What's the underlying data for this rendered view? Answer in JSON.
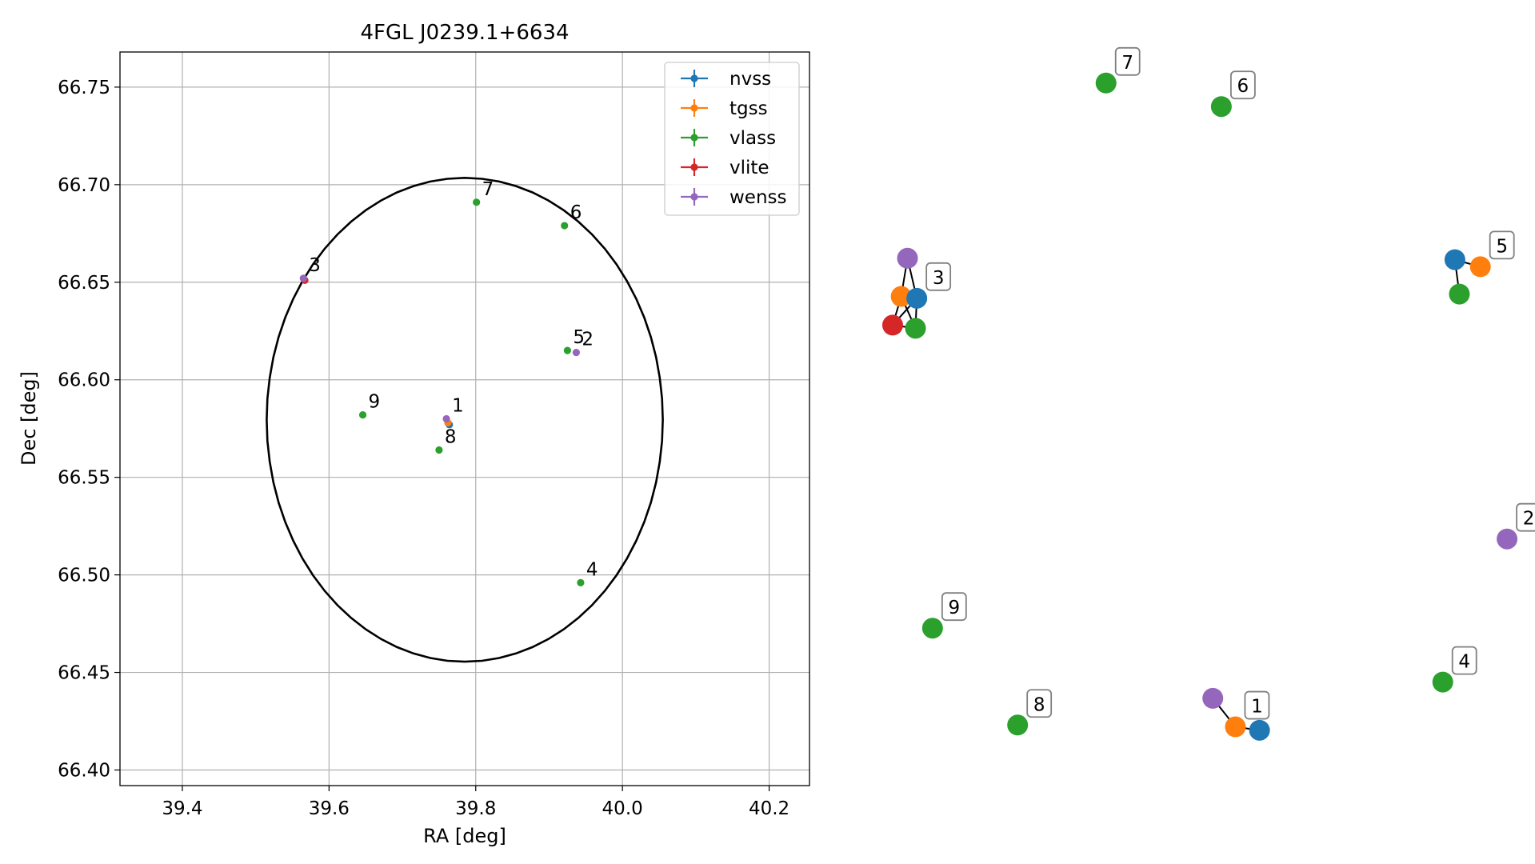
{
  "chart_data": [
    {
      "type": "scatter",
      "title": "4FGL J0239.1+6634",
      "xlabel": "RA [deg]",
      "ylabel": "Dec [deg]",
      "xlim": [
        39.315,
        40.255
      ],
      "ylim": [
        66.392,
        66.768
      ],
      "xticks": [
        39.4,
        39.6,
        39.8,
        40.0,
        40.2
      ],
      "xtick_labels": [
        "39.4",
        "39.6",
        "39.8",
        "40.0",
        "40.2"
      ],
      "yticks": [
        66.4,
        66.45,
        66.5,
        66.55,
        66.6,
        66.65,
        66.7,
        66.75
      ],
      "ytick_labels": [
        "66.40",
        "66.45",
        "66.50",
        "66.55",
        "66.60",
        "66.65",
        "66.70",
        "66.75"
      ],
      "grid": true,
      "legend_position": "top-right",
      "ellipse": {
        "center_ra": 39.785,
        "center_dec": 66.5795,
        "semi_width_ra": 0.27,
        "semi_height_dec": 0.124,
        "color": "#000000"
      },
      "series": [
        {
          "name": "nvss",
          "color": "#1f77b4",
          "points": [
            {
              "ra": 39.764,
              "dec": 66.577
            }
          ]
        },
        {
          "name": "tgss",
          "color": "#ff7f0e",
          "points": [
            {
              "ra": 39.762,
              "dec": 66.578
            }
          ]
        },
        {
          "name": "vlass",
          "color": "#2ca02c",
          "points": [
            {
              "ra": 39.801,
              "dec": 66.691
            },
            {
              "ra": 39.921,
              "dec": 66.679
            },
            {
              "ra": 39.925,
              "dec": 66.615
            },
            {
              "ra": 39.943,
              "dec": 66.496
            },
            {
              "ra": 39.646,
              "dec": 66.582
            },
            {
              "ra": 39.75,
              "dec": 66.564
            }
          ]
        },
        {
          "name": "vlite",
          "color": "#d62728",
          "points": [
            {
              "ra": 39.567,
              "dec": 66.651
            }
          ]
        },
        {
          "name": "wenss",
          "color": "#9467bd",
          "points": [
            {
              "ra": 39.565,
              "dec": 66.652
            },
            {
              "ra": 39.937,
              "dec": 66.614
            },
            {
              "ra": 39.76,
              "dec": 66.58
            }
          ]
        }
      ],
      "labels": [
        {
          "text": "7",
          "ra": 39.801,
          "dec": 66.691
        },
        {
          "text": "6",
          "ra": 39.921,
          "dec": 66.679
        },
        {
          "text": "3",
          "ra": 39.565,
          "dec": 66.652
        },
        {
          "text": "5",
          "ra": 39.925,
          "dec": 66.615
        },
        {
          "text": "2",
          "ra": 39.937,
          "dec": 66.614
        },
        {
          "text": "9",
          "ra": 39.646,
          "dec": 66.582
        },
        {
          "text": "1",
          "ra": 39.76,
          "dec": 66.58
        },
        {
          "text": "8",
          "ra": 39.75,
          "dec": 66.564
        },
        {
          "text": "4",
          "ra": 39.943,
          "dec": 66.496
        }
      ]
    },
    {
      "type": "scatter",
      "title": "",
      "nodes": [
        {
          "id": "3-wenss",
          "group": "3",
          "catalog": "wenss",
          "color": "#9467bd",
          "x": 0.0433,
          "y": 0.2811
        },
        {
          "id": "3-tgss",
          "group": "3",
          "catalog": "tgss",
          "color": "#ff7f0e",
          "x": 0.0337,
          "y": 0.3332
        },
        {
          "id": "3-nvss",
          "group": "3",
          "catalog": "nvss",
          "color": "#1f77b4",
          "x": 0.0575,
          "y": 0.3357
        },
        {
          "id": "3-vlite",
          "group": "3",
          "catalog": "vlite",
          "color": "#d62728",
          "x": 0.0207,
          "y": 0.3723
        },
        {
          "id": "3-vlass",
          "group": "3",
          "catalog": "vlass",
          "color": "#2ca02c",
          "x": 0.0555,
          "y": 0.3766
        },
        {
          "id": "5-nvss",
          "group": "5",
          "catalog": "nvss",
          "color": "#1f77b4",
          "x": 0.8779,
          "y": 0.2831
        },
        {
          "id": "5-tgss",
          "group": "5",
          "catalog": "tgss",
          "color": "#ff7f0e",
          "x": 0.9167,
          "y": 0.2927
        },
        {
          "id": "5-vlass",
          "group": "5",
          "catalog": "vlass",
          "color": "#2ca02c",
          "x": 0.8847,
          "y": 0.33
        },
        {
          "id": "2-wenss",
          "group": "2",
          "catalog": "wenss",
          "color": "#9467bd",
          "x": 0.9574,
          "y": 0.6638
        },
        {
          "id": "1-wenss",
          "group": "1",
          "catalog": "wenss",
          "color": "#9467bd",
          "x": 0.5088,
          "y": 0.881
        },
        {
          "id": "1-tgss",
          "group": "1",
          "catalog": "tgss",
          "color": "#ff7f0e",
          "x": 0.5432,
          "y": 0.9199
        },
        {
          "id": "1-nvss",
          "group": "1",
          "catalog": "nvss",
          "color": "#1f77b4",
          "x": 0.58,
          "y": 0.9246
        },
        {
          "id": "7-vlass",
          "group": "7",
          "catalog": "vlass",
          "color": "#2ca02c",
          "x": 0.346,
          "y": 0.0423
        },
        {
          "id": "6-vlass",
          "group": "6",
          "catalog": "vlass",
          "color": "#2ca02c",
          "x": 0.5218,
          "y": 0.0744
        },
        {
          "id": "9-vlass",
          "group": "9",
          "catalog": "vlass",
          "color": "#2ca02c",
          "x": 0.0815,
          "y": 0.7854
        },
        {
          "id": "8-vlass",
          "group": "8",
          "catalog": "vlass",
          "color": "#2ca02c",
          "x": 0.2112,
          "y": 0.9174
        },
        {
          "id": "4-vlass",
          "group": "4",
          "catalog": "vlass",
          "color": "#2ca02c",
          "x": 0.8594,
          "y": 0.8589
        }
      ],
      "edges": [
        [
          "3-wenss",
          "3-nvss"
        ],
        [
          "3-wenss",
          "3-tgss"
        ],
        [
          "3-tgss",
          "3-vlite"
        ],
        [
          "3-vlite",
          "3-nvss"
        ],
        [
          "3-vlite",
          "3-vlass"
        ],
        [
          "3-nvss",
          "3-vlass"
        ],
        [
          "3-tgss",
          "3-vlass"
        ],
        [
          "5-nvss",
          "5-tgss"
        ],
        [
          "5-nvss",
          "5-vlass"
        ],
        [
          "1-wenss",
          "1-tgss"
        ],
        [
          "1-tgss",
          "1-nvss"
        ]
      ],
      "group_labels": [
        {
          "text": "7",
          "node": "7-vlass"
        },
        {
          "text": "6",
          "node": "6-vlass"
        },
        {
          "text": "3",
          "node": "3-nvss"
        },
        {
          "text": "5",
          "node": "5-tgss"
        },
        {
          "text": "2",
          "node": "2-wenss"
        },
        {
          "text": "9",
          "node": "9-vlass"
        },
        {
          "text": "1",
          "node": "1-tgss"
        },
        {
          "text": "8",
          "node": "8-vlass"
        },
        {
          "text": "4",
          "node": "4-vlass"
        }
      ]
    }
  ]
}
